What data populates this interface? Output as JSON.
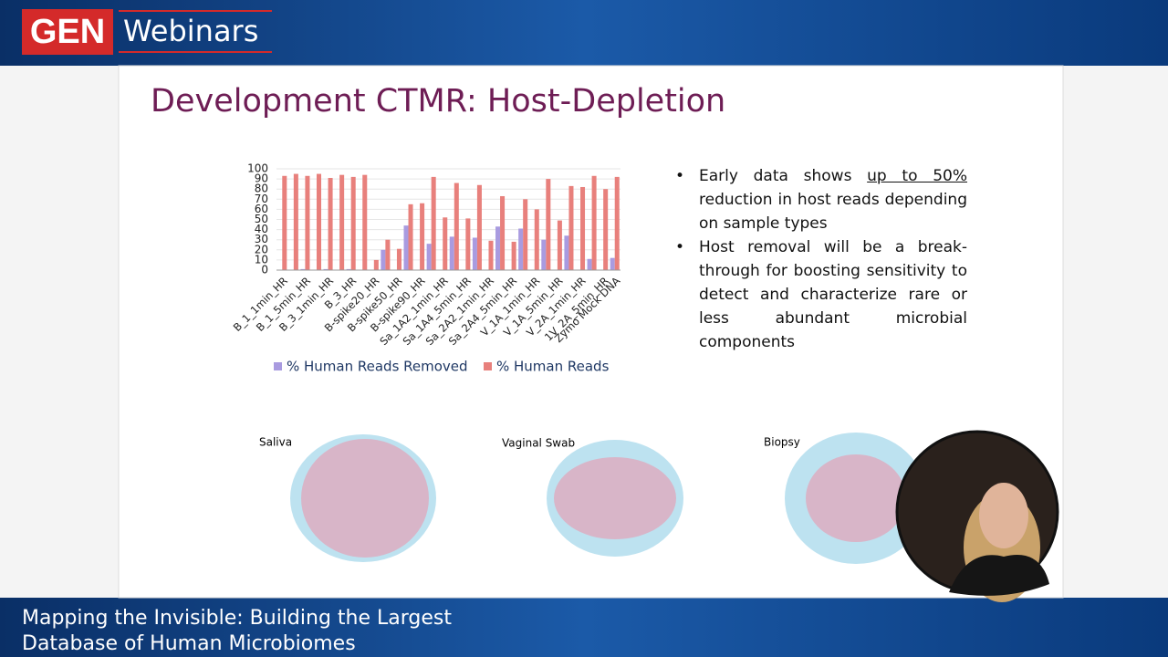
{
  "header": {
    "brand": "GEN",
    "product": "Webinars"
  },
  "slide": {
    "title": "Development CTMR: Host-Depletion",
    "bullets": [
      {
        "before": "Early data shows ",
        "underlined": "up to 50%",
        "after": " reduction in host reads depending on sample types"
      },
      {
        "text": "Host removal will be a break-through for boosting sensitivity to detect and characterize rare or less abundant microbial components"
      }
    ],
    "venn_labels": [
      "Saliva",
      "Vaginal Swab",
      "Biopsy"
    ]
  },
  "chart_data": {
    "type": "bar",
    "categories": [
      "B_1_1min_HR",
      null,
      "B_1_5min_HR",
      null,
      "B_3_1min_HR",
      null,
      "B_3_HR",
      null,
      "B-spike20_HR",
      null,
      "B-spike50_HR",
      null,
      "B-spike90_HR",
      null,
      "Sa_1A2_1min_HR",
      null,
      "Sa_1A4_5min_HR",
      null,
      "Sa_2A2_1min_HR",
      null,
      "Sa_2A4_5min_HR",
      null,
      "V_1A_1min_HR",
      null,
      "V_1A_5min_HR",
      null,
      "V_2A_1min_HR",
      null,
      "1V_2A_5min_HR",
      "Zymo Mock DNA"
    ],
    "series": [
      {
        "name": "% Human Reads  Removed",
        "color": "#a99be0",
        "values": [
          0,
          0,
          1,
          0,
          1,
          0,
          1,
          0,
          0,
          20,
          0,
          44,
          0,
          26,
          0,
          33,
          0,
          32,
          0,
          43,
          0,
          41,
          0,
          30,
          0,
          34,
          0,
          11,
          0,
          12
        ]
      },
      {
        "name": "% Human Reads",
        "color": "#e8807c",
        "values": [
          93,
          95,
          93,
          95,
          91,
          94,
          92,
          94,
          10,
          30,
          21,
          65,
          66,
          92,
          52,
          86,
          51,
          84,
          29,
          73,
          28,
          70,
          60,
          90,
          49,
          83,
          82,
          93,
          80,
          92
        ]
      }
    ],
    "ylim": [
      0,
      100
    ],
    "yticks": [
      0,
      10,
      20,
      30,
      40,
      50,
      60,
      70,
      80,
      90,
      100
    ]
  },
  "footer": {
    "lines": [
      "Mapping the Invisible: Building the Largest",
      "Database of Human Microbiomes"
    ]
  }
}
